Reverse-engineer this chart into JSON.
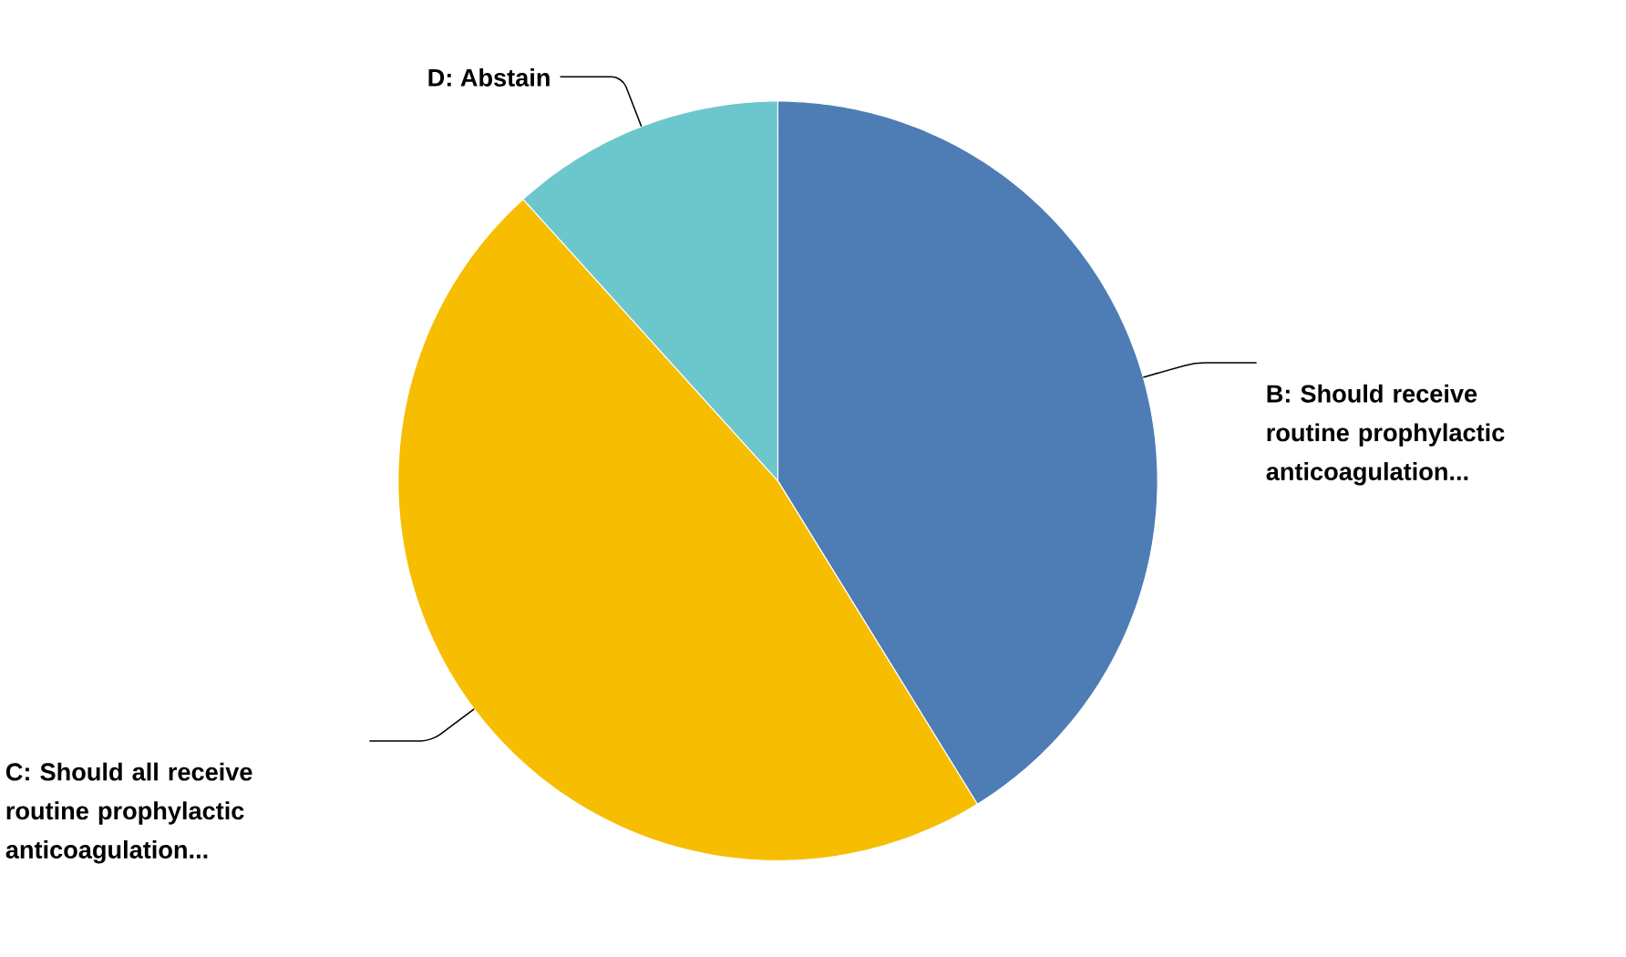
{
  "chart_data": {
    "type": "pie",
    "categories": [
      "B: Should receive routine prophylactic anticoagulation...",
      "C: Should all receive routine prophylactic anticoagulation...",
      "D: Abstain"
    ],
    "values": [
      41.2,
      47.1,
      11.7
    ],
    "colors": [
      "#4e7db5",
      "#f7bd00",
      "#6cc7cc"
    ]
  }
}
